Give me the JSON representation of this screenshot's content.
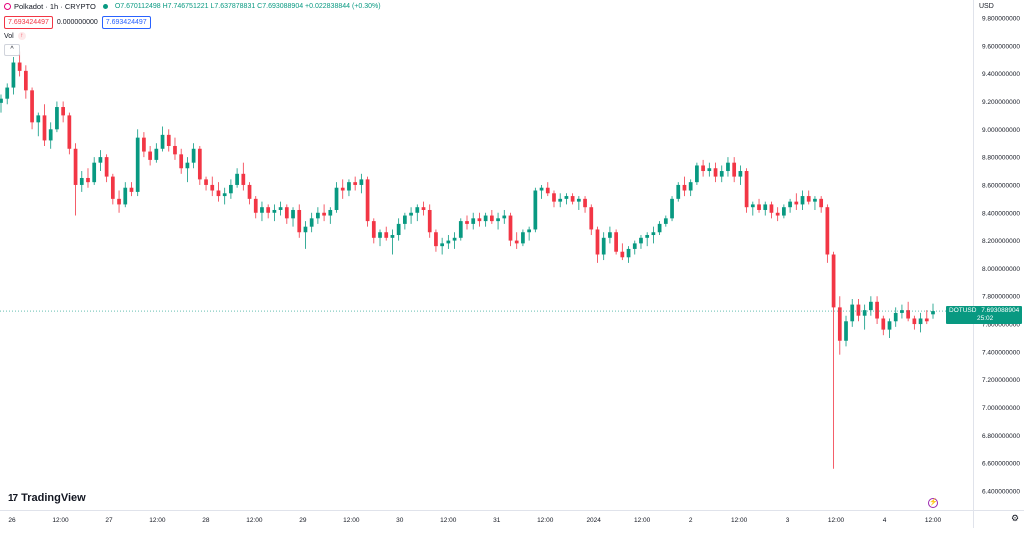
{
  "legend": {
    "title": "Polkadot · 1h · CRYPTO",
    "ohlc": "O7.670112498 H7.746751221 L7.637878831 C7.693088904 +0.022838844 (+0.30%)"
  },
  "values": {
    "box1": "7.693424497",
    "plain": "0.000000000",
    "box2": "7.693424497"
  },
  "vol_label": "Vol",
  "currency": "USD",
  "price_axis_labels": [
    "9.800000000",
    "9.600000000",
    "9.400000000",
    "9.200000000",
    "9.000000000",
    "8.800000000",
    "8.600000000",
    "8.400000000",
    "8.200000000",
    "8.000000000",
    "7.800000000",
    "7.600000000",
    "7.400000000",
    "7.200000000",
    "7.000000000",
    "6.800000000",
    "6.600000000",
    "6.400000000"
  ],
  "time_axis_labels": [
    "26",
    "12:00",
    "27",
    "12:00",
    "28",
    "12:00",
    "29",
    "12:00",
    "30",
    "12:00",
    "31",
    "12:00",
    "2024",
    "12:00",
    "2",
    "12:00",
    "3",
    "12:00",
    "4",
    "12:00"
  ],
  "price_tag": {
    "symbol": "DOTUSD",
    "price": "7.693088904",
    "countdown": "25:02"
  },
  "brand": "TradingView",
  "colors": {
    "up": "#089981",
    "down": "#f23645",
    "accent": "#2962ff"
  },
  "chart_data": {
    "type": "candlestick",
    "timeframe": "1h",
    "symbol": "DOTUSD",
    "y_axis": "price (USD)",
    "ylim": [
      6.4,
      9.8
    ],
    "last_price": 7.693088904,
    "candles": [
      [
        9.19,
        9.25,
        9.12,
        9.22
      ],
      [
        9.22,
        9.33,
        9.18,
        9.3
      ],
      [
        9.3,
        9.52,
        9.25,
        9.48
      ],
      [
        9.48,
        9.56,
        9.38,
        9.42
      ],
      [
        9.42,
        9.46,
        9.22,
        9.28
      ],
      [
        9.28,
        9.3,
        9.0,
        9.05
      ],
      [
        9.05,
        9.12,
        8.95,
        9.1
      ],
      [
        9.1,
        9.18,
        8.88,
        8.92
      ],
      [
        8.92,
        9.05,
        8.86,
        9.0
      ],
      [
        9.0,
        9.2,
        8.98,
        9.16
      ],
      [
        9.16,
        9.2,
        9.05,
        9.1
      ],
      [
        9.1,
        9.12,
        8.82,
        8.86
      ],
      [
        8.86,
        8.9,
        8.38,
        8.6
      ],
      [
        8.6,
        8.7,
        8.55,
        8.65
      ],
      [
        8.65,
        8.72,
        8.58,
        8.62
      ],
      [
        8.62,
        8.8,
        8.6,
        8.76
      ],
      [
        8.76,
        8.85,
        8.7,
        8.8
      ],
      [
        8.8,
        8.82,
        8.62,
        8.66
      ],
      [
        8.66,
        8.68,
        8.46,
        8.5
      ],
      [
        8.5,
        8.56,
        8.4,
        8.46
      ],
      [
        8.46,
        8.62,
        8.44,
        8.58
      ],
      [
        8.58,
        8.62,
        8.52,
        8.55
      ],
      [
        8.55,
        9.0,
        8.52,
        8.94
      ],
      [
        8.94,
        8.98,
        8.8,
        8.84
      ],
      [
        8.84,
        8.88,
        8.74,
        8.78
      ],
      [
        8.78,
        8.9,
        8.76,
        8.86
      ],
      [
        8.86,
        9.02,
        8.84,
        8.96
      ],
      [
        8.96,
        9.0,
        8.84,
        8.88
      ],
      [
        8.88,
        8.94,
        8.78,
        8.82
      ],
      [
        8.82,
        8.86,
        8.68,
        8.72
      ],
      [
        8.72,
        8.8,
        8.62,
        8.76
      ],
      [
        8.76,
        8.9,
        8.72,
        8.86
      ],
      [
        8.86,
        8.88,
        8.6,
        8.64
      ],
      [
        8.64,
        8.66,
        8.56,
        8.6
      ],
      [
        8.6,
        8.66,
        8.52,
        8.56
      ],
      [
        8.56,
        8.62,
        8.48,
        8.52
      ],
      [
        8.52,
        8.58,
        8.46,
        8.54
      ],
      [
        8.54,
        8.64,
        8.5,
        8.6
      ],
      [
        8.6,
        8.72,
        8.58,
        8.68
      ],
      [
        8.68,
        8.76,
        8.56,
        8.6
      ],
      [
        8.6,
        8.62,
        8.46,
        8.5
      ],
      [
        8.5,
        8.52,
        8.36,
        8.4
      ],
      [
        8.4,
        8.48,
        8.34,
        8.44
      ],
      [
        8.44,
        8.46,
        8.36,
        8.4
      ],
      [
        8.4,
        8.46,
        8.34,
        8.42
      ],
      [
        8.42,
        8.48,
        8.38,
        8.44
      ],
      [
        8.44,
        8.46,
        8.32,
        8.36
      ],
      [
        8.36,
        8.44,
        8.3,
        8.42
      ],
      [
        8.42,
        8.46,
        8.22,
        8.26
      ],
      [
        8.26,
        8.34,
        8.14,
        8.3
      ],
      [
        8.3,
        8.4,
        8.26,
        8.36
      ],
      [
        8.36,
        8.44,
        8.32,
        8.4
      ],
      [
        8.4,
        8.46,
        8.34,
        8.38
      ],
      [
        8.38,
        8.44,
        8.32,
        8.42
      ],
      [
        8.42,
        8.62,
        8.4,
        8.58
      ],
      [
        8.58,
        8.64,
        8.5,
        8.56
      ],
      [
        8.56,
        8.64,
        8.52,
        8.62
      ],
      [
        8.62,
        8.66,
        8.56,
        8.6
      ],
      [
        8.6,
        8.68,
        8.54,
        8.64
      ],
      [
        8.64,
        8.66,
        8.3,
        8.34
      ],
      [
        8.34,
        8.36,
        8.18,
        8.22
      ],
      [
        8.22,
        8.28,
        8.16,
        8.26
      ],
      [
        8.26,
        8.3,
        8.2,
        8.22
      ],
      [
        8.22,
        8.28,
        8.1,
        8.24
      ],
      [
        8.24,
        8.36,
        8.2,
        8.32
      ],
      [
        8.32,
        8.4,
        8.28,
        8.38
      ],
      [
        8.38,
        8.44,
        8.32,
        8.4
      ],
      [
        8.4,
        8.46,
        8.34,
        8.44
      ],
      [
        8.44,
        8.48,
        8.38,
        8.42
      ],
      [
        8.42,
        8.46,
        8.22,
        8.26
      ],
      [
        8.26,
        8.28,
        8.12,
        8.16
      ],
      [
        8.16,
        8.22,
        8.1,
        8.18
      ],
      [
        8.18,
        8.24,
        8.14,
        8.2
      ],
      [
        8.2,
        8.26,
        8.14,
        8.22
      ],
      [
        8.22,
        8.36,
        8.2,
        8.34
      ],
      [
        8.34,
        8.38,
        8.28,
        8.32
      ],
      [
        8.32,
        8.4,
        8.28,
        8.36
      ],
      [
        8.36,
        8.4,
        8.3,
        8.34
      ],
      [
        8.34,
        8.4,
        8.3,
        8.38
      ],
      [
        8.38,
        8.42,
        8.32,
        8.34
      ],
      [
        8.34,
        8.4,
        8.28,
        8.36
      ],
      [
        8.36,
        8.42,
        8.32,
        8.38
      ],
      [
        8.38,
        8.4,
        8.16,
        8.2
      ],
      [
        8.2,
        8.26,
        8.14,
        8.18
      ],
      [
        8.18,
        8.28,
        8.16,
        8.26
      ],
      [
        8.26,
        8.3,
        8.2,
        8.28
      ],
      [
        8.28,
        8.58,
        8.26,
        8.56
      ],
      [
        8.56,
        8.6,
        8.5,
        8.58
      ],
      [
        8.58,
        8.62,
        8.52,
        8.54
      ],
      [
        8.54,
        8.56,
        8.44,
        8.48
      ],
      [
        8.48,
        8.54,
        8.44,
        8.5
      ],
      [
        8.5,
        8.54,
        8.46,
        8.52
      ],
      [
        8.52,
        8.54,
        8.46,
        8.48
      ],
      [
        8.48,
        8.52,
        8.42,
        8.5
      ],
      [
        8.5,
        8.52,
        8.4,
        8.44
      ],
      [
        8.44,
        8.46,
        8.24,
        8.28
      ],
      [
        8.28,
        8.3,
        8.04,
        8.1
      ],
      [
        8.1,
        8.26,
        8.06,
        8.22
      ],
      [
        8.22,
        8.3,
        8.18,
        8.26
      ],
      [
        8.26,
        8.28,
        8.1,
        8.12
      ],
      [
        8.12,
        8.18,
        8.06,
        8.08
      ],
      [
        8.08,
        8.16,
        8.04,
        8.14
      ],
      [
        8.14,
        8.2,
        8.1,
        8.18
      ],
      [
        8.18,
        8.24,
        8.14,
        8.22
      ],
      [
        8.22,
        8.26,
        8.16,
        8.24
      ],
      [
        8.24,
        8.3,
        8.18,
        8.26
      ],
      [
        8.26,
        8.34,
        8.24,
        8.32
      ],
      [
        8.32,
        8.38,
        8.3,
        8.36
      ],
      [
        8.36,
        8.52,
        8.34,
        8.5
      ],
      [
        8.5,
        8.62,
        8.48,
        8.6
      ],
      [
        8.6,
        8.66,
        8.52,
        8.56
      ],
      [
        8.56,
        8.64,
        8.52,
        8.62
      ],
      [
        8.62,
        8.76,
        8.6,
        8.74
      ],
      [
        8.74,
        8.78,
        8.66,
        8.7
      ],
      [
        8.7,
        8.76,
        8.66,
        8.72
      ],
      [
        8.72,
        8.76,
        8.62,
        8.66
      ],
      [
        8.66,
        8.74,
        8.62,
        8.7
      ],
      [
        8.7,
        8.8,
        8.66,
        8.76
      ],
      [
        8.76,
        8.8,
        8.62,
        8.66
      ],
      [
        8.66,
        8.74,
        8.6,
        8.7
      ],
      [
        8.7,
        8.72,
        8.4,
        8.44
      ],
      [
        8.44,
        8.48,
        8.38,
        8.46
      ],
      [
        8.46,
        8.5,
        8.4,
        8.42
      ],
      [
        8.42,
        8.48,
        8.38,
        8.46
      ],
      [
        8.46,
        8.48,
        8.36,
        8.4
      ],
      [
        8.4,
        8.44,
        8.34,
        8.38
      ],
      [
        8.38,
        8.46,
        8.36,
        8.44
      ],
      [
        8.44,
        8.5,
        8.4,
        8.48
      ],
      [
        8.48,
        8.54,
        8.42,
        8.46
      ],
      [
        8.46,
        8.56,
        8.42,
        8.52
      ],
      [
        8.52,
        8.56,
        8.46,
        8.48
      ],
      [
        8.48,
        8.52,
        8.42,
        8.5
      ],
      [
        8.5,
        8.52,
        8.4,
        8.44
      ],
      [
        8.44,
        8.46,
        8.04,
        8.1
      ],
      [
        8.1,
        8.12,
        6.56,
        7.72
      ],
      [
        7.72,
        7.8,
        7.38,
        7.48
      ],
      [
        7.48,
        7.66,
        7.44,
        7.62
      ],
      [
        7.62,
        7.78,
        7.58,
        7.74
      ],
      [
        7.74,
        7.78,
        7.62,
        7.66
      ],
      [
        7.66,
        7.74,
        7.56,
        7.7
      ],
      [
        7.7,
        7.8,
        7.66,
        7.76
      ],
      [
        7.76,
        7.8,
        7.6,
        7.64
      ],
      [
        7.64,
        7.66,
        7.52,
        7.56
      ],
      [
        7.56,
        7.64,
        7.5,
        7.62
      ],
      [
        7.62,
        7.72,
        7.58,
        7.68
      ],
      [
        7.68,
        7.74,
        7.64,
        7.7
      ],
      [
        7.7,
        7.76,
        7.62,
        7.64
      ],
      [
        7.64,
        7.66,
        7.56,
        7.6
      ],
      [
        7.6,
        7.68,
        7.54,
        7.64
      ],
      [
        7.64,
        7.7,
        7.6,
        7.62
      ],
      [
        7.670112498,
        7.746751221,
        7.637878831,
        7.693088904
      ]
    ]
  }
}
